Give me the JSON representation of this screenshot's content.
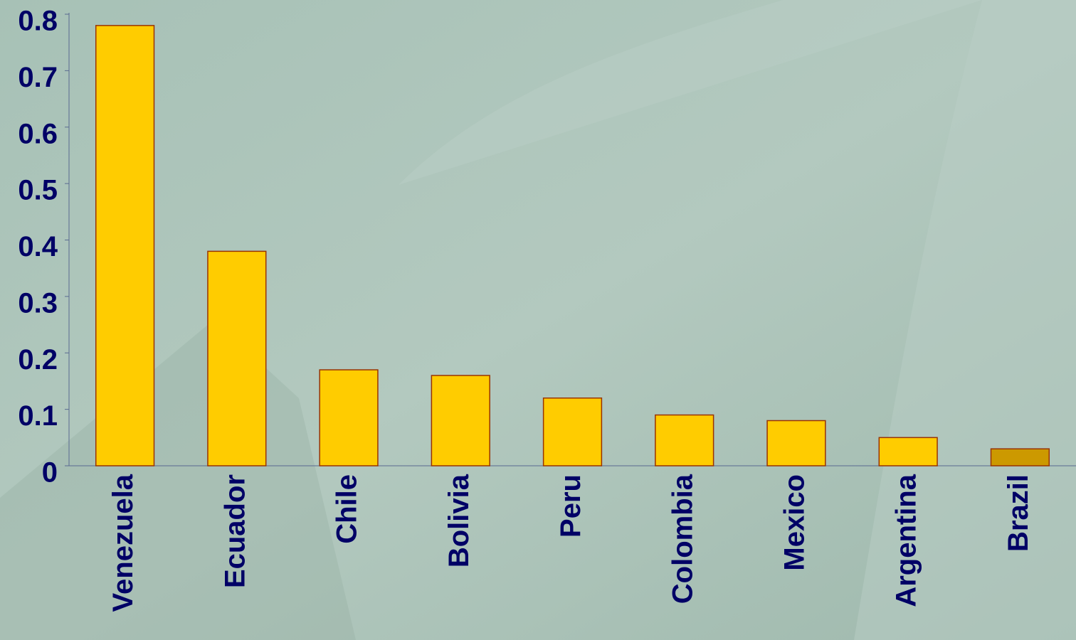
{
  "chart_data": {
    "type": "bar",
    "categories": [
      "Venezuela",
      "Ecuador",
      "Chile",
      "Bolivia",
      "Peru",
      "Colombia",
      "Mexico",
      "Argentina",
      "Brazil"
    ],
    "values": [
      0.78,
      0.38,
      0.17,
      0.16,
      0.12,
      0.09,
      0.08,
      0.05,
      0.03
    ],
    "colors": [
      "#ffcc00",
      "#ffcc00",
      "#ffcc00",
      "#ffcc00",
      "#ffcc00",
      "#ffcc00",
      "#ffcc00",
      "#ffcc00",
      "#cc9900"
    ],
    "ylim": [
      0,
      0.8
    ],
    "yticks": [
      0,
      0.1,
      0.2,
      0.3,
      0.4,
      0.5,
      0.6,
      0.7,
      0.8
    ],
    "grid": false
  }
}
